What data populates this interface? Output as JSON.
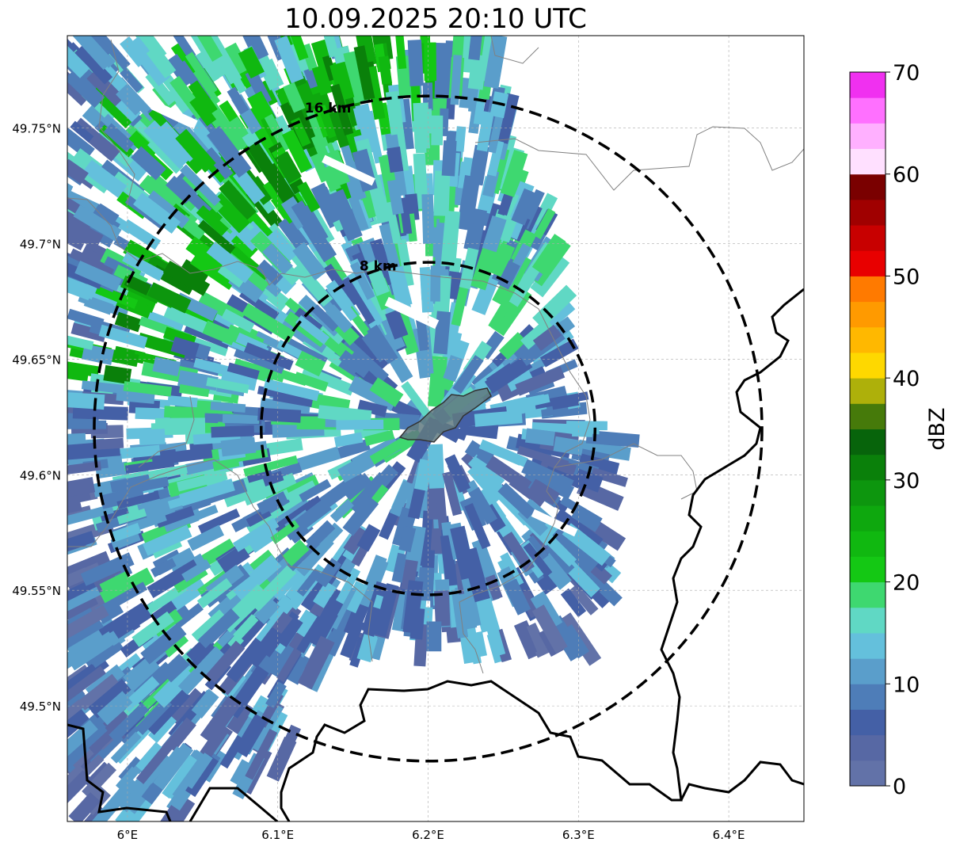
{
  "map": {
    "title": "10.09.2025 20:10 UTC",
    "extent": {
      "lon_min": 5.96,
      "lon_max": 6.45,
      "lat_min": 49.45,
      "lat_max": 49.79
    },
    "lon_ticks": [
      {
        "value": 6.0,
        "label": "6°E"
      },
      {
        "value": 6.1,
        "label": "6.1°E"
      },
      {
        "value": 6.2,
        "label": "6.2°E"
      },
      {
        "value": 6.3,
        "label": "6.3°E"
      },
      {
        "value": 6.4,
        "label": "6.4°E"
      }
    ],
    "lat_ticks": [
      {
        "value": 49.75,
        "label": "49.75°N"
      },
      {
        "value": 49.7,
        "label": "49.7°N"
      },
      {
        "value": 49.65,
        "label": "49.65°N"
      },
      {
        "value": 49.6,
        "label": "49.6°N"
      },
      {
        "value": 49.55,
        "label": "49.55°N"
      },
      {
        "value": 49.5,
        "label": "49.5°N"
      }
    ],
    "gridlines": true,
    "center": {
      "lon": 6.2,
      "lat": 49.62
    },
    "rings": [
      {
        "label": "8 km",
        "radius_km": 8
      },
      {
        "label": "16 km",
        "radius_km": 16
      }
    ]
  },
  "colorbar": {
    "label": "dBZ",
    "vmin": 0,
    "vmax": 70,
    "ticks": [
      0,
      10,
      20,
      30,
      40,
      50,
      60,
      70
    ],
    "colors": [
      "#6272a8",
      "#5768a4",
      "#4460a6",
      "#4e7db8",
      "#5a9ecb",
      "#64c0dc",
      "#60d8c4",
      "#3ed870",
      "#14c814",
      "#10b810",
      "#0ea80e",
      "#0d960e",
      "#0a800a",
      "#07640b",
      "#467a0a",
      "#aeb00a",
      "#fed800",
      "#ffb800",
      "#ff9a00",
      "#ff7a00",
      "#e80000",
      "#c80000",
      "#a00000",
      "#7a0000",
      "#ffe0ff",
      "#ffb0ff",
      "#ff70ff",
      "#f030f0"
    ]
  },
  "colors": {
    "ring": "#000000",
    "border": "#000000",
    "admin_boundary": "#808080",
    "city": "#607a80"
  }
}
